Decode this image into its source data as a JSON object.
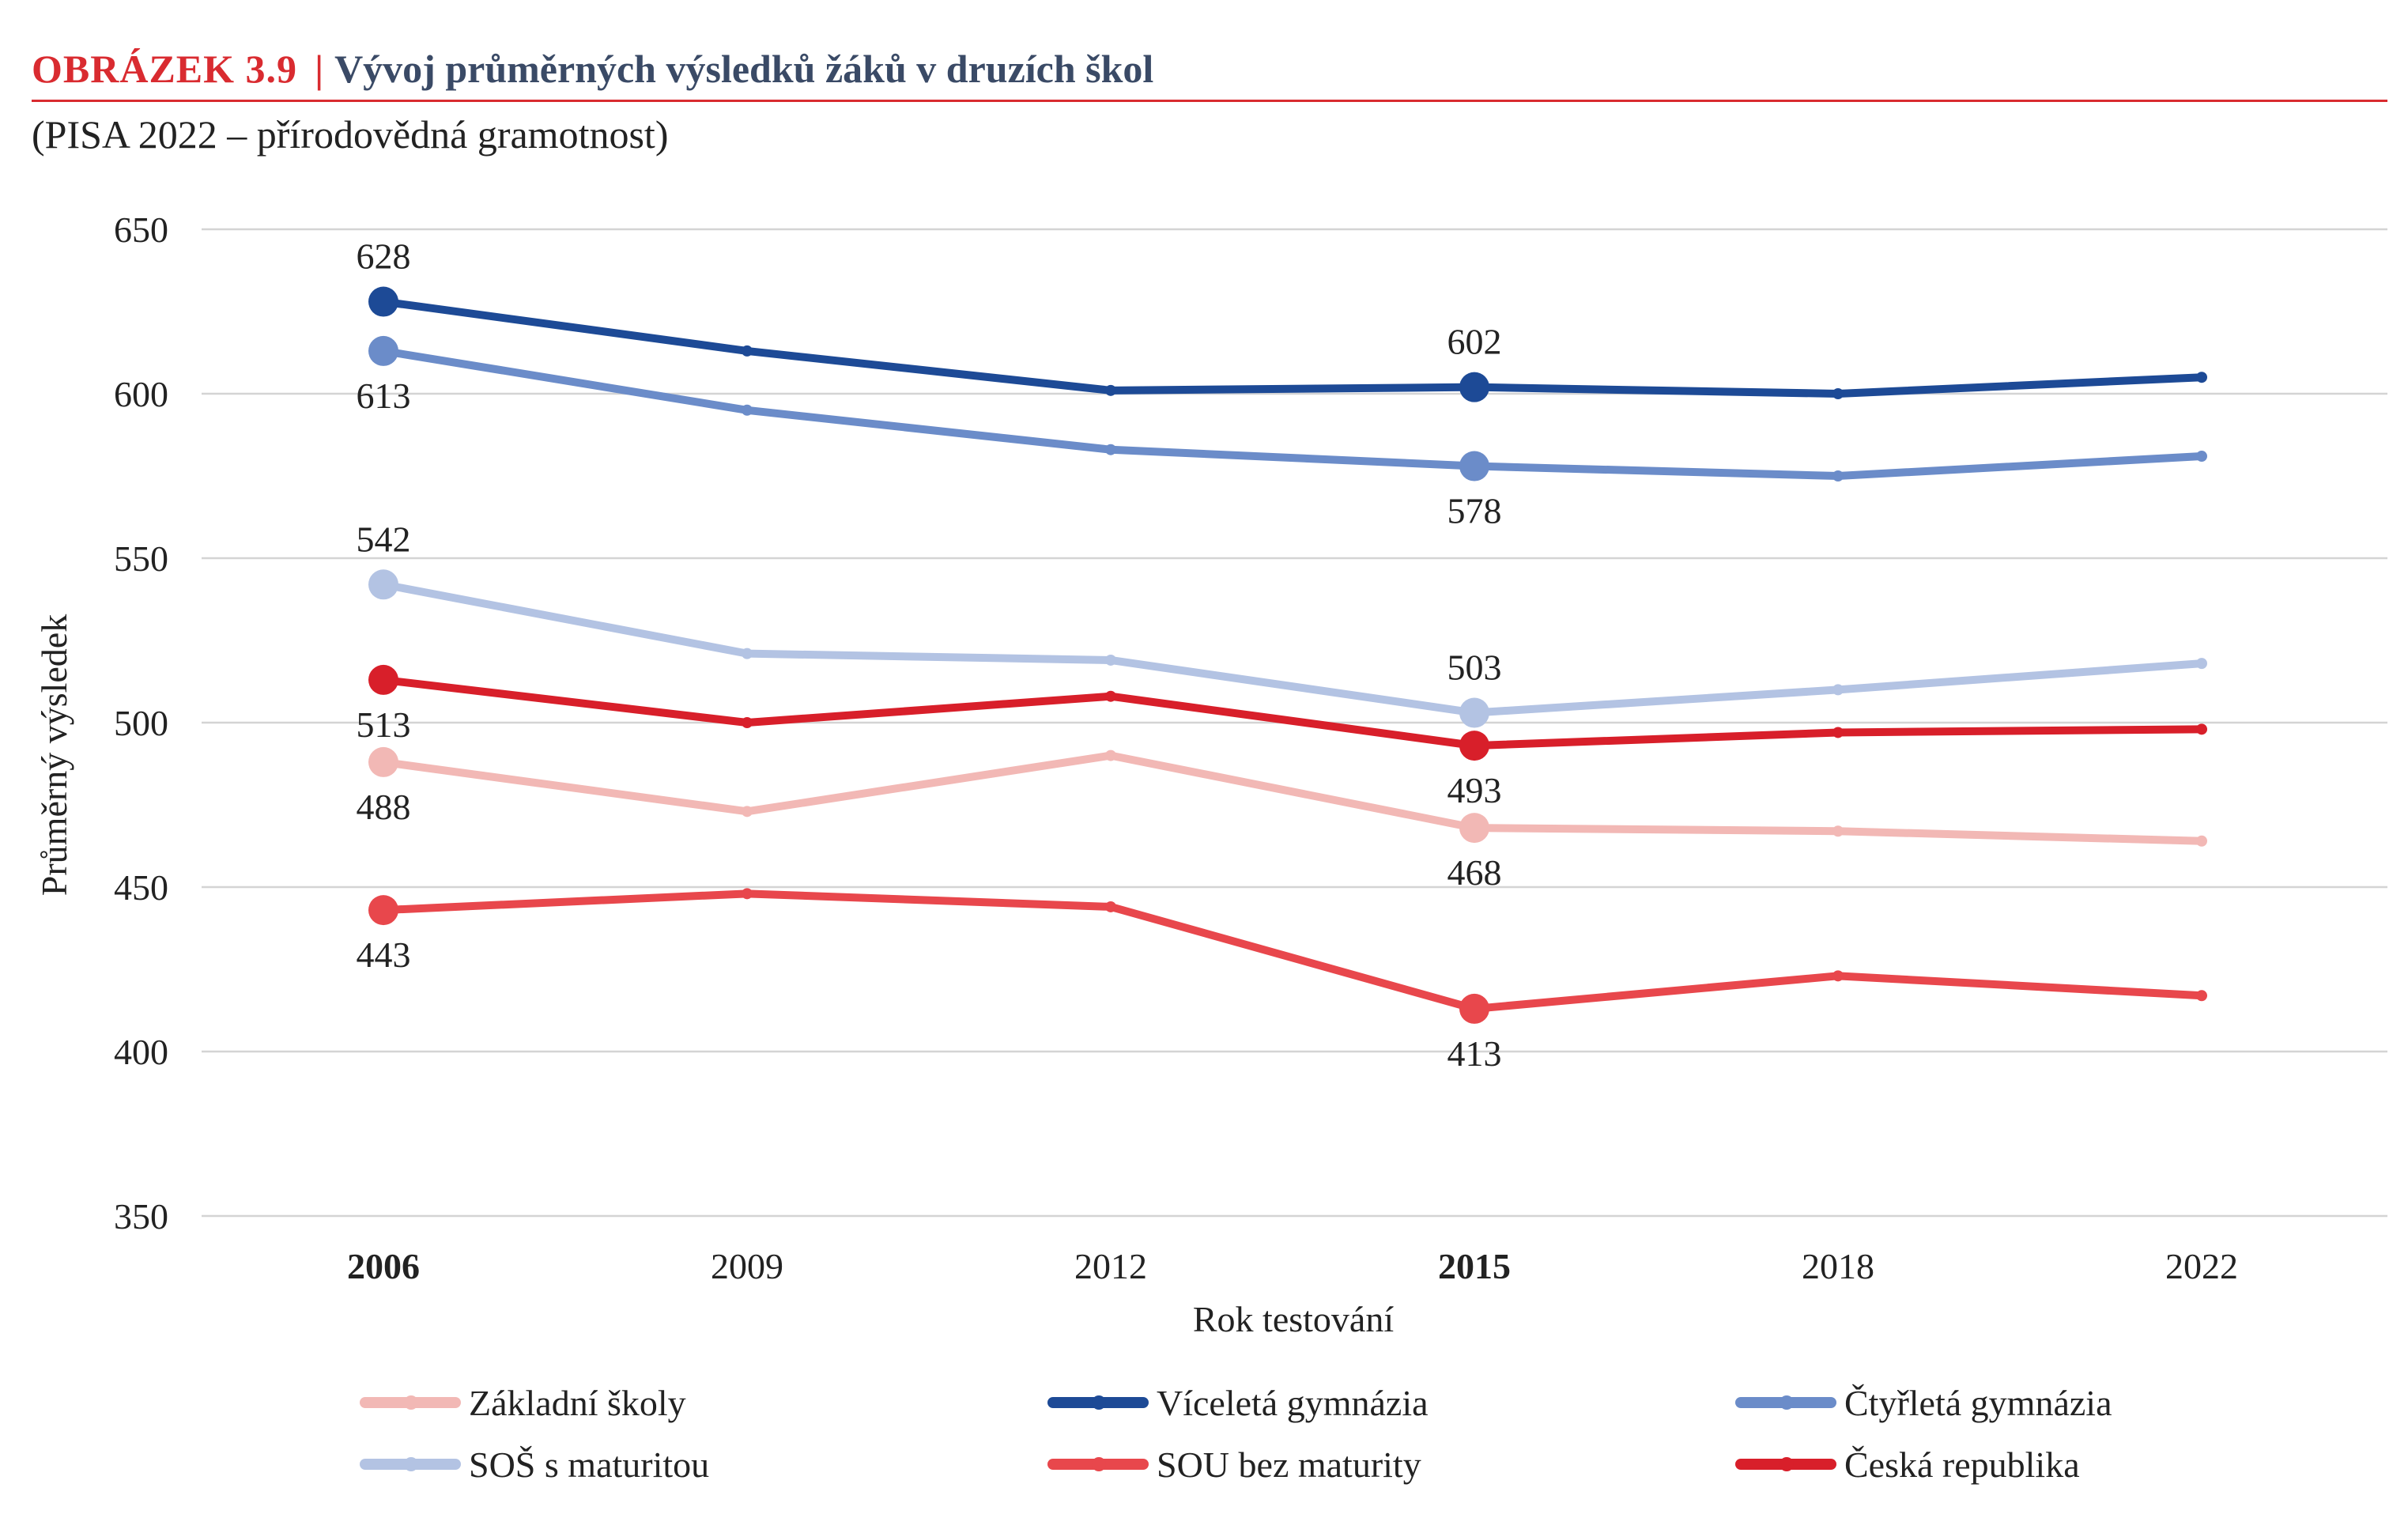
{
  "figure": {
    "label": "OBRÁZEK  3.9",
    "separator": "|",
    "title": "Vývoj průměrných výsledků žáků v druzích škol",
    "subtitle": "(PISA 2022 – přírodovědná gramotnost)"
  },
  "chart_data": {
    "type": "line",
    "title": "Vývoj průměrných výsledků žáků v druzích škol",
    "subtitle": "(PISA 2022 – přírodovědná gramotnost)",
    "xlabel": "Rok testování",
    "ylabel": "Průměrný výsledek",
    "categories": [
      "2006",
      "2009",
      "2012",
      "2015",
      "2018",
      "2022"
    ],
    "bold_categories": [
      "2006",
      "2015"
    ],
    "ylim": [
      350,
      650
    ],
    "yticks": [
      350,
      400,
      450,
      500,
      550,
      600,
      650
    ],
    "grid": true,
    "legend_position": "bottom",
    "series": [
      {
        "name": "Základní školy",
        "color": "#f2b8b5",
        "values": [
          488,
          473,
          490,
          468,
          467,
          464
        ],
        "labels": {
          "0": {
            "text": "488",
            "pos": "below"
          },
          "3": {
            "text": "468",
            "pos": "below"
          }
        }
      },
      {
        "name": "Víceletá gymnázia",
        "color": "#1d4a96",
        "values": [
          628,
          613,
          601,
          602,
          600,
          605
        ],
        "labels": {
          "0": {
            "text": "628",
            "pos": "above"
          },
          "3": {
            "text": "602",
            "pos": "above"
          }
        }
      },
      {
        "name": "Čtyřletá gymnázia",
        "color": "#6b8cc9",
        "values": [
          613,
          595,
          583,
          578,
          575,
          581
        ],
        "labels": {
          "0": {
            "text": "613",
            "pos": "below"
          },
          "3": {
            "text": "578",
            "pos": "below"
          }
        }
      },
      {
        "name": "SOŠ s maturitou",
        "color": "#b3c3e3",
        "values": [
          542,
          521,
          519,
          503,
          510,
          518
        ],
        "labels": {
          "0": {
            "text": "542",
            "pos": "above"
          },
          "3": {
            "text": "503",
            "pos": "above"
          }
        }
      },
      {
        "name": "SOU bez maturity",
        "color": "#e8474c",
        "values": [
          443,
          448,
          444,
          413,
          423,
          417
        ],
        "labels": {
          "0": {
            "text": "443",
            "pos": "below"
          },
          "3": {
            "text": "413",
            "pos": "below"
          }
        }
      },
      {
        "name": "Česká republika",
        "color": "#d81f2a",
        "values": [
          513,
          500,
          508,
          493,
          497,
          498
        ],
        "labels": {
          "0": {
            "text": "513",
            "pos": "below"
          },
          "3": {
            "text": "493",
            "pos": "below"
          }
        }
      }
    ]
  }
}
